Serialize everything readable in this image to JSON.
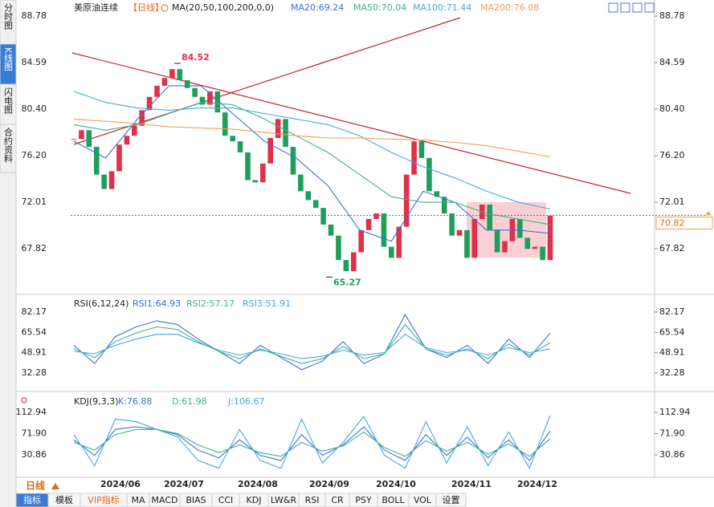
{
  "tabs": [
    "分时图",
    "K线图",
    "闪电图",
    "合约资料"
  ],
  "header": {
    "symbol": "美原油连续",
    "period": "【日线】",
    "ma_def": "MA(20,50,100,200,0,0)",
    "ma20": "MA20:69.24",
    "ma50": "MA50:70.04",
    "ma100": "MA100:71.44",
    "ma200": "MA200:76.08"
  },
  "chart_data": [
    {
      "type": "candlestick",
      "ylim": [
        63.85,
        89.65
      ],
      "yticks": [
        88.78,
        84.59,
        {
          "value": 80.4,
          "label": "80.40"
        },
        {
          "value": 76.2,
          "label": "76.20"
        },
        72.01,
        67.82
      ],
      "closes": [
        77.7,
        78.5,
        77.0,
        74.5,
        73.2,
        74.8,
        77.2,
        78.0,
        78.9,
        80.3,
        81.5,
        82.5,
        83.2,
        84.0,
        83.0,
        82.3,
        81.5,
        80.8,
        82.0,
        80.1,
        78.0,
        77.5,
        76.5,
        74.0,
        73.8,
        75.5,
        77.8,
        79.5,
        77.0,
        74.5,
        73.0,
        72.2,
        71.5,
        70.0,
        69.0,
        66.8,
        65.8,
        67.5,
        69.5,
        70.5,
        71.0,
        68.0,
        67.0,
        69.8,
        74.5,
        77.5,
        76.0,
        73.0,
        72.5,
        71.0,
        69.0,
        69.5,
        67.0,
        70.5,
        71.8,
        69.5,
        67.5,
        68.5,
        70.5,
        68.8,
        67.8,
        68.0,
        66.8,
        70.8
      ],
      "up_color": "#e0304a",
      "down_color": "#1e9e5a",
      "series": [
        {
          "name": "MA20",
          "color": "#3a6fd8",
          "values": [
            77.5,
            76,
            79.5,
            82.5,
            82.5,
            80,
            77.5,
            76,
            73.5,
            69.5,
            68.5,
            73,
            72,
            69.5,
            69.5,
            69.2
          ]
        },
        {
          "name": "MA50",
          "color": "#3fb28a",
          "values": [
            79,
            78.5,
            79,
            80,
            81,
            80.8,
            79.5,
            78,
            76.5,
            74.5,
            72.5,
            72,
            72,
            71,
            70.5,
            70.0
          ]
        },
        {
          "name": "MA100",
          "color": "#45a8e0",
          "values": [
            82,
            81,
            80.5,
            80.3,
            80.5,
            80.5,
            80,
            79.5,
            79,
            78,
            76.5,
            75.2,
            74.2,
            73,
            72,
            71.4
          ]
        },
        {
          "name": "MA200",
          "color": "#f0a050",
          "values": [
            79.5,
            79.3,
            79.1,
            78.8,
            78.7,
            78.6,
            78.3,
            78.0,
            77.8,
            77.8,
            77.7,
            77.6,
            77.4,
            77.1,
            76.6,
            76.1
          ]
        }
      ],
      "annotations": [
        {
          "value": 84.52,
          "color": "#e0304a"
        },
        {
          "value": 65.27,
          "color": "#1e9e5a"
        }
      ],
      "last_price": 70.82
    },
    {
      "type": "line",
      "title": "RSI(6,12,24)",
      "ylim": [
        17.2,
        94.6
      ],
      "yticks": [
        82.17,
        65.54,
        48.91,
        32.28
      ],
      "legend": [
        "RSI1:64.93",
        "RSI2:57.17",
        "RSI3:51.91"
      ],
      "series": [
        {
          "name": "RSI1",
          "color": "#3a6fd8",
          "values": [
            55,
            40,
            62,
            70,
            75,
            72,
            60,
            50,
            40,
            55,
            45,
            35,
            42,
            58,
            40,
            48,
            80,
            52,
            45,
            55,
            40,
            60,
            45,
            64.93
          ]
        },
        {
          "name": "RSI2",
          "color": "#3fb28a",
          "values": [
            52,
            45,
            58,
            65,
            70,
            68,
            58,
            50,
            44,
            52,
            46,
            40,
            44,
            54,
            44,
            48,
            72,
            52,
            47,
            52,
            44,
            56,
            47,
            57.17
          ]
        },
        {
          "name": "RSI3",
          "color": "#45a8e0",
          "values": [
            50,
            48,
            55,
            60,
            64,
            64,
            57,
            51,
            47,
            51,
            48,
            44,
            46,
            51,
            47,
            49,
            64,
            53,
            49,
            51,
            47,
            53,
            49,
            51.91
          ]
        }
      ]
    },
    {
      "type": "line",
      "title": "KDJ(9,3,3)",
      "ylim": [
        -12.5,
        147
      ],
      "yticks": [
        112.94,
        {
          "value": 71.9,
          "label": "71.90"
        },
        30.86
      ],
      "legend": [
        "K:76.88",
        "D:61.98",
        "J:106.67"
      ],
      "series": [
        {
          "name": "K",
          "color": "#3a6fd8",
          "values": [
            60,
            30,
            80,
            85,
            80,
            70,
            40,
            25,
            60,
            30,
            20,
            70,
            30,
            50,
            85,
            40,
            20,
            70,
            30,
            65,
            25,
            60,
            20,
            76.88
          ]
        },
        {
          "name": "D",
          "color": "#3fb28a",
          "values": [
            55,
            40,
            70,
            80,
            80,
            72,
            50,
            35,
            50,
            35,
            28,
            55,
            38,
            48,
            75,
            45,
            28,
            58,
            38,
            55,
            32,
            52,
            28,
            61.98
          ]
        },
        {
          "name": "J",
          "color": "#45a8e0",
          "values": [
            70,
            10,
            100,
            95,
            80,
            66,
            20,
            5,
            80,
            20,
            5,
            100,
            15,
            55,
            105,
            30,
            5,
            95,
            15,
            85,
            10,
            75,
            5,
            106.67
          ]
        }
      ]
    }
  ],
  "dates": [
    "2024/06",
    "2024/07",
    "2024/08",
    "2024/09",
    "2024/10",
    "2024/11",
    "2024/12"
  ],
  "period_button": "日线",
  "toolbar": [
    "指标",
    "模板",
    "VIP指标",
    "MA",
    "MACD",
    "BIAS",
    "CCI",
    "KDJ",
    "LW&R",
    "RSI",
    "CR",
    "PSY",
    "BOLL",
    "VOL",
    "设置"
  ]
}
